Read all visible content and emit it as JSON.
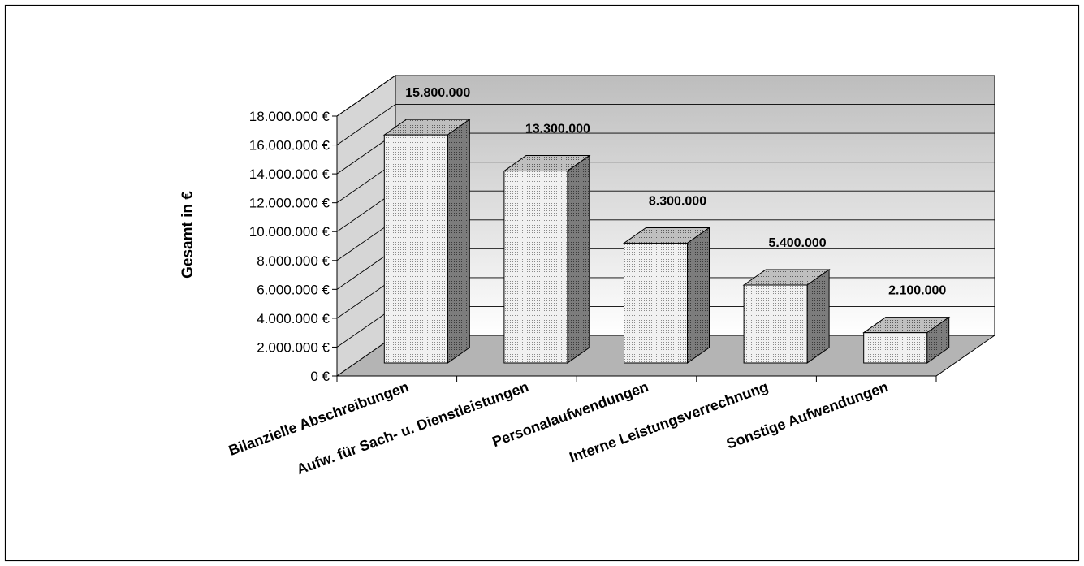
{
  "chart_data": {
    "type": "bar",
    "title": "",
    "xlabel": "",
    "ylabel": "Gesamt in €",
    "categories": [
      "Bilanzielle Abschreibungen",
      "Aufw. für Sach- u. Dienstleistungen",
      "Personalaufwendungen",
      "Interne Leistungsverrechnung",
      "Sonstige Aufwendungen"
    ],
    "values": [
      15800000,
      13300000,
      8300000,
      5400000,
      2100000
    ],
    "data_labels": [
      "15.800.000",
      "13.300.000",
      "8.300.000",
      "5.400.000",
      "2.100.000"
    ],
    "ylim": [
      0,
      18000000
    ],
    "yticks": [
      0,
      2000000,
      4000000,
      6000000,
      8000000,
      10000000,
      12000000,
      14000000,
      16000000,
      18000000
    ],
    "ytick_labels": [
      "0 €",
      "2.000.000 €",
      "4.000.000 €",
      "6.000.000 €",
      "8.000.000 €",
      "10.000.000 €",
      "12.000.000 €",
      "14.000.000 €",
      "16.000.000 €",
      "18.000.000 €"
    ],
    "grid": true,
    "legend": false,
    "style": "3d-column",
    "colors": {
      "bar_front": "#ececec",
      "bar_top": "#b0b0b0",
      "bar_side": "#6e6e6e",
      "floor": "#b4b4b4",
      "wall_top": "#bdbdbd",
      "wall_bottom": "#ffffff",
      "side_wall": "#d6d6d6"
    }
  }
}
